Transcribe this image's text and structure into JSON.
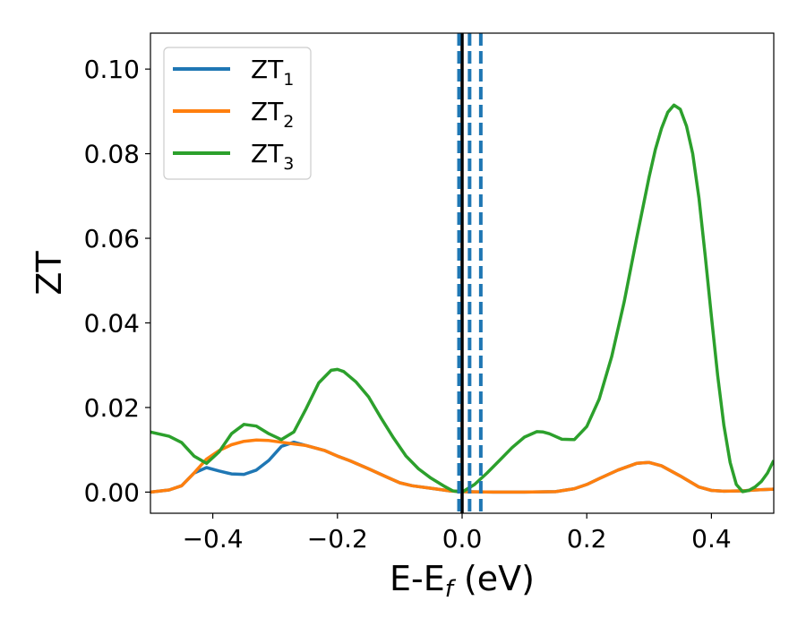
{
  "chart_data": {
    "type": "line",
    "xlabel": {
      "main": "E-E",
      "sub": "f",
      "unit": " (eV)"
    },
    "ylabel": "ZT",
    "xlim": [
      -0.5,
      0.5
    ],
    "ylim": [
      -0.005,
      0.1085
    ],
    "xticks": [
      -0.4,
      -0.2,
      0.0,
      0.2,
      0.4
    ],
    "xtick_labels": [
      "−0.4",
      "−0.2",
      "0.0",
      "0.2",
      "0.4"
    ],
    "yticks": [
      0.0,
      0.02,
      0.04,
      0.06,
      0.08,
      0.1
    ],
    "ytick_labels": [
      "0.00",
      "0.02",
      "0.04",
      "0.06",
      "0.08",
      "0.10"
    ],
    "grid": false,
    "legend": {
      "position": "top-left",
      "entries": [
        {
          "main": "ZT",
          "sub": "1",
          "color": "#1f77b4"
        },
        {
          "main": "ZT",
          "sub": "2",
          "color": "#ff7f0e"
        },
        {
          "main": "ZT",
          "sub": "3",
          "color": "#2ca02c"
        }
      ]
    },
    "vlines": [
      {
        "x": 0.0,
        "color": "#000000",
        "style": "solid"
      },
      {
        "x": -0.005,
        "color": "#1f77b4",
        "style": "dashed"
      },
      {
        "x": 0.012,
        "color": "#1f77b4",
        "style": "dashed"
      },
      {
        "x": 0.03,
        "color": "#1f77b4",
        "style": "dashed"
      }
    ],
    "series": [
      {
        "name": "ZT1",
        "color": "#1f77b4",
        "x": [
          -0.5,
          -0.47,
          -0.45,
          -0.43,
          -0.41,
          -0.39,
          -0.37,
          -0.35,
          -0.33,
          -0.31,
          -0.29,
          -0.27,
          -0.25,
          -0.22,
          -0.2,
          -0.18,
          -0.15,
          -0.12,
          -0.1,
          -0.08,
          -0.05,
          -0.02,
          0.0,
          0.05,
          0.1,
          0.15,
          0.18,
          0.2,
          0.22,
          0.25,
          0.28,
          0.3,
          0.32,
          0.35,
          0.38,
          0.4,
          0.42,
          0.45,
          0.47,
          0.5
        ],
        "y": [
          0.0,
          0.0005,
          0.0015,
          0.0045,
          0.0058,
          0.005,
          0.0043,
          0.0042,
          0.0052,
          0.0075,
          0.0108,
          0.0118,
          0.011,
          0.0098,
          0.0085,
          0.0074,
          0.0055,
          0.0035,
          0.0022,
          0.0015,
          0.0009,
          0.0003,
          0.0001,
          0.0,
          0.0,
          0.0001,
          0.0008,
          0.0018,
          0.0032,
          0.0052,
          0.0068,
          0.007,
          0.0062,
          0.0038,
          0.0012,
          0.0004,
          0.0002,
          0.0003,
          0.0005,
          0.0007
        ]
      },
      {
        "name": "ZT2",
        "color": "#ff7f0e",
        "x": [
          -0.5,
          -0.47,
          -0.45,
          -0.43,
          -0.41,
          -0.39,
          -0.37,
          -0.35,
          -0.33,
          -0.31,
          -0.29,
          -0.27,
          -0.25,
          -0.22,
          -0.2,
          -0.18,
          -0.15,
          -0.12,
          -0.1,
          -0.08,
          -0.05,
          -0.02,
          0.0,
          0.05,
          0.1,
          0.15,
          0.18,
          0.2,
          0.22,
          0.25,
          0.28,
          0.3,
          0.32,
          0.35,
          0.38,
          0.4,
          0.42,
          0.45,
          0.47,
          0.5
        ],
        "y": [
          0.0,
          0.0005,
          0.0015,
          0.0045,
          0.0078,
          0.0098,
          0.0112,
          0.012,
          0.0123,
          0.0122,
          0.0118,
          0.0114,
          0.011,
          0.0098,
          0.0085,
          0.0074,
          0.0055,
          0.0035,
          0.0022,
          0.0015,
          0.0009,
          0.0003,
          0.0001,
          0.0,
          0.0,
          0.0001,
          0.0008,
          0.0018,
          0.0032,
          0.0052,
          0.0068,
          0.007,
          0.0062,
          0.0038,
          0.0012,
          0.0004,
          0.0002,
          0.0003,
          0.0005,
          0.0007
        ]
      },
      {
        "name": "ZT3",
        "color": "#2ca02c",
        "x": [
          -0.5,
          -0.47,
          -0.45,
          -0.43,
          -0.41,
          -0.39,
          -0.37,
          -0.35,
          -0.33,
          -0.31,
          -0.29,
          -0.27,
          -0.25,
          -0.23,
          -0.21,
          -0.2,
          -0.19,
          -0.17,
          -0.15,
          -0.13,
          -0.11,
          -0.09,
          -0.07,
          -0.05,
          -0.03,
          -0.015,
          0.0,
          0.02,
          0.04,
          0.06,
          0.08,
          0.1,
          0.12,
          0.13,
          0.14,
          0.16,
          0.18,
          0.2,
          0.22,
          0.24,
          0.26,
          0.28,
          0.3,
          0.31,
          0.32,
          0.33,
          0.34,
          0.35,
          0.36,
          0.37,
          0.38,
          0.39,
          0.4,
          0.41,
          0.42,
          0.43,
          0.44,
          0.45,
          0.46,
          0.47,
          0.48,
          0.49,
          0.5
        ],
        "y": [
          0.0142,
          0.0132,
          0.0117,
          0.0085,
          0.0068,
          0.0095,
          0.0138,
          0.016,
          0.0156,
          0.0138,
          0.0124,
          0.0142,
          0.0198,
          0.0258,
          0.0288,
          0.029,
          0.0285,
          0.026,
          0.0225,
          0.0175,
          0.0128,
          0.0085,
          0.0055,
          0.0033,
          0.0015,
          0.0003,
          0.0,
          0.0018,
          0.0045,
          0.0075,
          0.0105,
          0.013,
          0.0143,
          0.0142,
          0.0138,
          0.0125,
          0.0124,
          0.0155,
          0.022,
          0.032,
          0.045,
          0.06,
          0.0745,
          0.081,
          0.086,
          0.0898,
          0.0915,
          0.0905,
          0.0865,
          0.08,
          0.0695,
          0.056,
          0.0415,
          0.0275,
          0.0158,
          0.007,
          0.0018,
          0.0001,
          0.0004,
          0.0012,
          0.0025,
          0.0045,
          0.0075
        ]
      }
    ]
  }
}
